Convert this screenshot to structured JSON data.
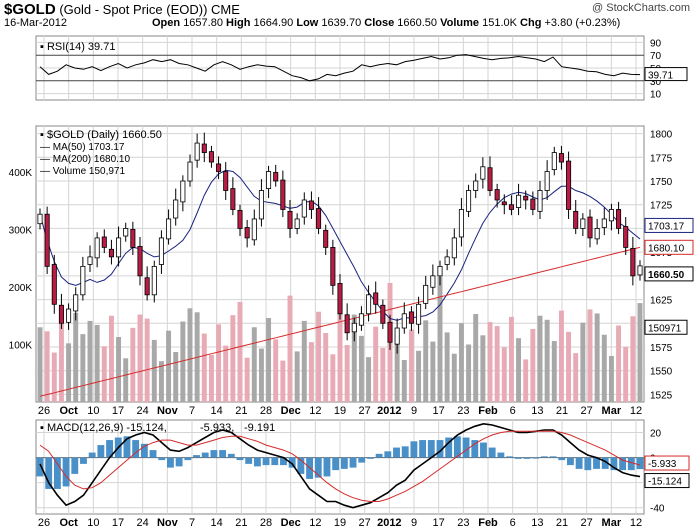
{
  "header": {
    "symbol": "$GOLD",
    "description": "(Gold - Spot Price (EOD))",
    "exchange": "CME",
    "date": "16-Mar-2012",
    "open_label": "Open",
    "open": "1657.80",
    "high_label": "High",
    "high": "1664.90",
    "low_label": "Low",
    "low": "1639.70",
    "close_label": "Close",
    "close": "1660.50",
    "volume_label": "Volume",
    "volume": "151.0K",
    "chg_label": "Chg",
    "chg": "+3.80 (+0.23%)",
    "watermark": "@ StockCharts.com"
  },
  "colors": {
    "up_candle": "#ffffff",
    "down_candle": "#b81c44",
    "ma50": "#1a237e",
    "ma200": "#d62a2a",
    "volume_up": "#a8a8a8",
    "volume_down": "#e8aab4",
    "macd_hist": "#4a90c8",
    "macd_line": "#000000",
    "signal_line": "#d62a2a",
    "grid": "#d4d4d4"
  },
  "chart_data": [
    {
      "type": "line",
      "title": "RSI(14) 39.71",
      "legend_label": "RSI(14) 39.71",
      "ylim": [
        0,
        100
      ],
      "y_ticks": [
        "90",
        "70",
        "50",
        "30",
        "10"
      ],
      "last_value_label": "39.71",
      "series": [
        {
          "name": "RSI(14)",
          "values": [
            52,
            40,
            45,
            55,
            50,
            48,
            52,
            46,
            52,
            57,
            50,
            55,
            58,
            63,
            60,
            63,
            57,
            55,
            50,
            45,
            55,
            60,
            55,
            48,
            52,
            55,
            53,
            52,
            45,
            38,
            35,
            30,
            33,
            40,
            38,
            42,
            45,
            55,
            52,
            55,
            57,
            55,
            60,
            62,
            65,
            68,
            64,
            66,
            70,
            71,
            68,
            65,
            63,
            65,
            66,
            68,
            66,
            64,
            60,
            67,
            52,
            50,
            48,
            45,
            44,
            40,
            38,
            42,
            40,
            39.71
          ]
        }
      ]
    },
    {
      "type": "candlestick",
      "title": "$GOLD (Daily) 1660.50",
      "ylim": [
        1517,
        1808
      ],
      "y_ticks": [
        "1800",
        "1775",
        "1750",
        "1725",
        "1700",
        "1675",
        "1650",
        "1625",
        "1600",
        "1575",
        "1550",
        "1525"
      ],
      "x_labels": [
        "26",
        "Oct",
        "10",
        "17",
        "24",
        "Nov",
        "7",
        "14",
        "21",
        "28",
        "Dec",
        "12",
        "19",
        "27",
        "2012",
        "9",
        "17",
        "23",
        "Feb",
        "6",
        "13",
        "21",
        "27",
        "Mar",
        "12"
      ],
      "legend": [
        {
          "name": "$GOLD (Daily) 1660.50"
        },
        {
          "name": "MA(50) 1703.17"
        },
        {
          "name": "MA(200) 1680.10"
        },
        {
          "name": "Volume 150,971"
        }
      ],
      "right_value_labels": [
        "1703.17",
        "1680.10",
        "1660.50"
      ],
      "close": [
        1715,
        1660,
        1620,
        1600,
        1615,
        1630,
        1660,
        1670,
        1690,
        1680,
        1670,
        1690,
        1700,
        1680,
        1650,
        1630,
        1660,
        1690,
        1710,
        1730,
        1750,
        1770,
        1790,
        1780,
        1770,
        1760,
        1740,
        1720,
        1700,
        1690,
        1710,
        1740,
        1760,
        1750,
        1720,
        1700,
        1710,
        1730,
        1720,
        1700,
        1680,
        1640,
        1610,
        1590,
        1600,
        1610,
        1630,
        1620,
        1600,
        1580,
        1595,
        1610,
        1600,
        1620,
        1640,
        1650,
        1660,
        1670,
        1690,
        1720,
        1740,
        1750,
        1765,
        1740,
        1730,
        1725,
        1720,
        1735,
        1730,
        1720,
        1740,
        1760,
        1780,
        1770,
        1720,
        1700,
        1710,
        1690,
        1700,
        1710,
        1720,
        1700,
        1680,
        1650,
        1660.5
      ],
      "volume_ylim": [
        0,
        480
      ],
      "volume_ticks": [
        "400K",
        "300K",
        "200K",
        "100K"
      ],
      "volume_last_label": "150971",
      "ma50_last": "1703.17",
      "ma200_last": "1680.10"
    },
    {
      "type": "line",
      "title": "MACD(12,26,9) -15.124, -5.933, -9.191",
      "legend": [
        {
          "name": "MACD(12,26,9) -15.124",
          "color": "#000000"
        },
        {
          "name": "-5.933",
          "color": "#d62a2a"
        },
        {
          "name": "-9.191",
          "color": "#4a90c8"
        }
      ],
      "ylim": [
        -45,
        30
      ],
      "y_ticks": [
        "20",
        "0",
        "-20",
        "-40"
      ],
      "right_value_labels": [
        "-5.933",
        "-15.124"
      ],
      "series": [
        {
          "name": "MACD",
          "values": [
            -5,
            -20,
            -30,
            -38,
            -35,
            -30,
            -20,
            -10,
            0,
            8,
            15,
            18,
            20,
            18,
            12,
            6,
            5,
            8,
            12,
            16,
            20,
            22,
            20,
            15,
            10,
            6,
            4,
            2,
            0,
            -5,
            -15,
            -25,
            -30,
            -35,
            -35,
            -38,
            -40,
            -38,
            -36,
            -32,
            -28,
            -22,
            -18,
            -10,
            -5,
            0,
            5,
            12,
            18,
            22,
            25,
            27,
            26,
            24,
            22,
            20,
            20,
            21,
            22,
            22,
            18,
            12,
            6,
            2,
            0,
            -3,
            -8,
            -12,
            -14,
            -15.124
          ]
        },
        {
          "name": "Signal",
          "values": [
            10,
            5,
            -5,
            -15,
            -22,
            -25,
            -24,
            -20,
            -14,
            -8,
            -2,
            4,
            9,
            12,
            14,
            14,
            12,
            10,
            10,
            12,
            14,
            16,
            17,
            17,
            15,
            13,
            10,
            8,
            6,
            3,
            -2,
            -8,
            -14,
            -20,
            -25,
            -29,
            -32,
            -34,
            -35,
            -35,
            -33,
            -30,
            -27,
            -23,
            -19,
            -14,
            -9,
            -4,
            1,
            6,
            11,
            15,
            18,
            20,
            21,
            21,
            21,
            21,
            21,
            21,
            20,
            18,
            15,
            12,
            9,
            6,
            2,
            -2,
            -4,
            -5.933
          ]
        }
      ],
      "x_labels": [
        "26",
        "Oct",
        "10",
        "17",
        "24",
        "Nov",
        "7",
        "14",
        "21",
        "28",
        "Dec",
        "12",
        "19",
        "27",
        "2012",
        "9",
        "17",
        "23",
        "Feb",
        "6",
        "13",
        "21",
        "27",
        "Mar",
        "12"
      ]
    }
  ]
}
